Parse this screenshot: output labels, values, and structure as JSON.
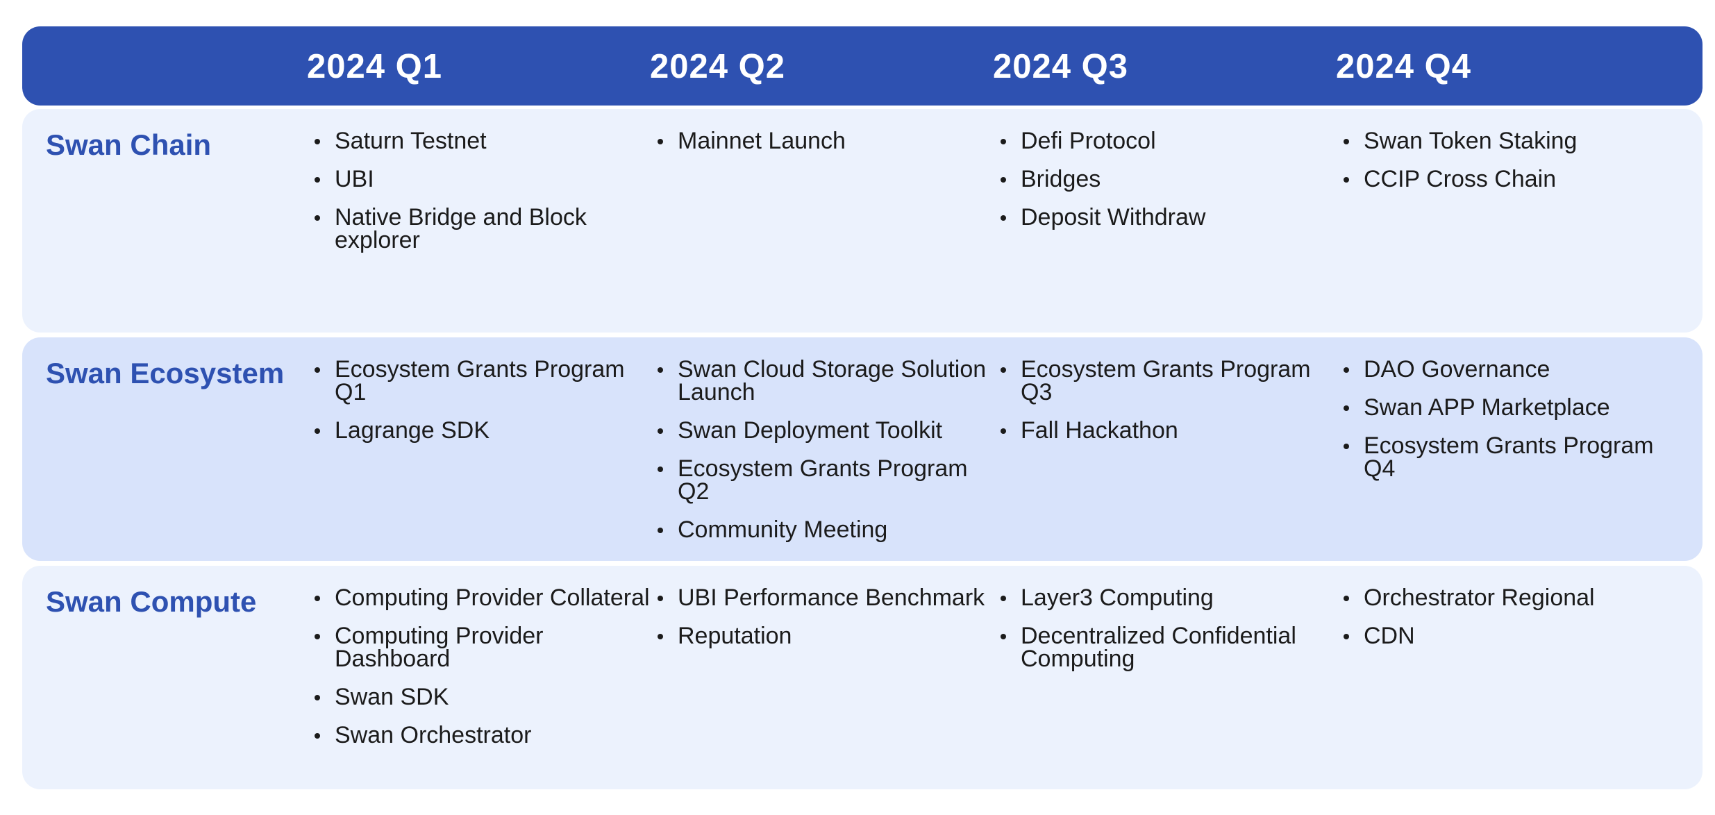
{
  "colors": {
    "header_bg": "#2e51b1",
    "row_light": "#ecf2fd",
    "row_mid": "#d8e3fb",
    "label_text": "#2e51b1",
    "item_text": "#1b1b1b"
  },
  "quarters": [
    "2024 Q1",
    "2024 Q2",
    "2024 Q3",
    "2024 Q4"
  ],
  "rows": [
    {
      "label": "Swan Chain",
      "cells": [
        [
          "Saturn Testnet",
          "UBI",
          "Native Bridge and Block explorer"
        ],
        [
          "Mainnet Launch"
        ],
        [
          "Defi Protocol",
          "Bridges",
          "Deposit Withdraw"
        ],
        [
          "Swan Token Staking",
          "CCIP Cross Chain"
        ]
      ]
    },
    {
      "label": "Swan Ecosystem",
      "cells": [
        [
          "Ecosystem Grants Program Q1",
          "Lagrange SDK"
        ],
        [
          "Swan Cloud Storage Solution Launch",
          "Swan Deployment Toolkit",
          "Ecosystem Grants Program Q2",
          "Community Meeting"
        ],
        [
          "Ecosystem Grants Program Q3",
          "Fall Hackathon"
        ],
        [
          "DAO Governance",
          "Swan APP Marketplace",
          "Ecosystem Grants Program Q4"
        ]
      ]
    },
    {
      "label": "Swan Compute",
      "cells": [
        [
          "Computing Provider Collateral",
          "Computing Provider Dashboard",
          "Swan SDK",
          "Swan Orchestrator"
        ],
        [
          "UBI Performance Benchmark",
          "Reputation"
        ],
        [
          "Layer3 Computing",
          "Decentralized Confidential Computing"
        ],
        [
          "Orchestrator Regional",
          "CDN"
        ]
      ]
    }
  ]
}
